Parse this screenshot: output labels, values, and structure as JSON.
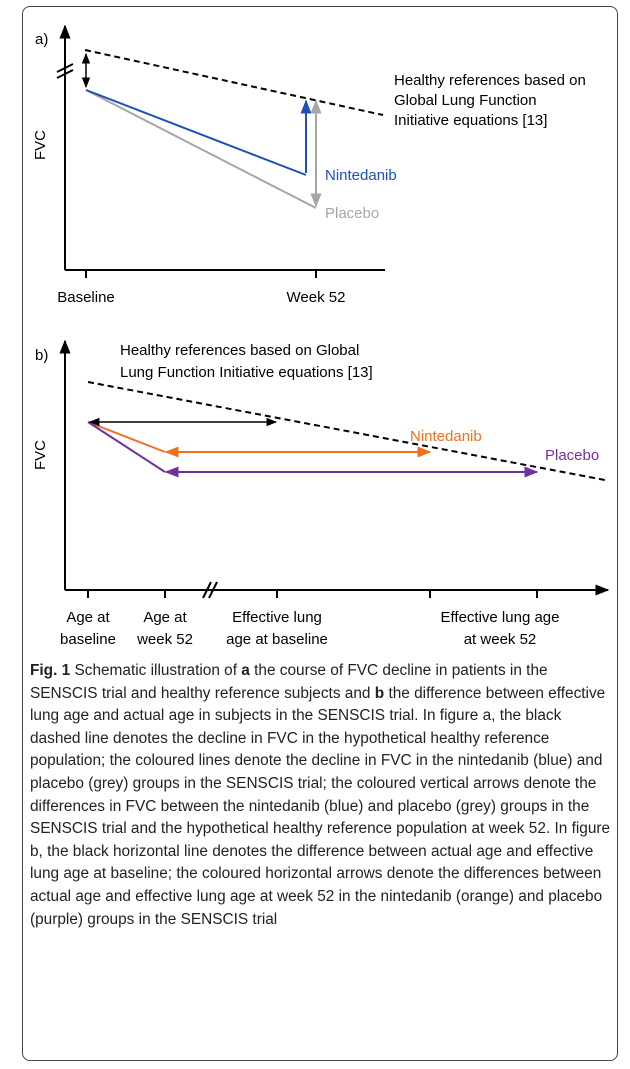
{
  "panel_a": {
    "label": "a)",
    "y_axis": "FVC",
    "x_labels": [
      "Baseline",
      "Week 52"
    ],
    "reference_lines": [
      "Healthy references based on",
      "Global Lung Function",
      "Initiative equations [13]"
    ],
    "series": [
      {
        "name": "Nintedanib",
        "color": "#1f4fbf"
      },
      {
        "name": "Placebo",
        "color": "#a6a6a6"
      }
    ]
  },
  "panel_b": {
    "label": "b)",
    "y_axis": "FVC",
    "x_labels": [
      [
        "Age at",
        "baseline"
      ],
      [
        "Age at",
        "week 52"
      ],
      [
        "Effective lung",
        "age at baseline"
      ],
      [
        "Effective lung age",
        "at week 52"
      ]
    ],
    "reference_lines": [
      "Healthy references based on Global",
      "Lung Function Initiative equations [13]"
    ],
    "series": [
      {
        "name": "Nintedanib",
        "color": "#f07020"
      },
      {
        "name": "Placebo",
        "color": "#7030a0"
      }
    ]
  },
  "caption": {
    "label": "Fig. 1",
    "segments": [
      {
        "text": " Schematic illustration of ",
        "bold": false
      },
      {
        "text": "a",
        "bold": true
      },
      {
        "text": " the course of FVC decline in patients in the SENSCIS trial and healthy reference subjects and ",
        "bold": false
      },
      {
        "text": "b",
        "bold": true
      },
      {
        "text": " the difference between effective lung age and actual age in subjects in the SENSCIS trial. In figure a, the black dashed line denotes the decline in FVC in the hypothetical healthy reference population; the coloured lines denote the decline in FVC in the nintedanib (blue) and placebo (grey) groups in the SENSCIS trial; the coloured vertical arrows denote the differences in FVC between the nintedanib (blue) and placebo (grey) groups in the SENSCIS trial and the hypothetical healthy reference population at week 52. In figure b, the black horizontal line denotes the difference between actual age and effective lung age at baseline; the coloured horizontal arrows denote the differences between actual age and effective lung age at week 52 in the nintedanib (orange) and placebo (purple) groups in the SENSCIS trial",
        "bold": false
      }
    ]
  }
}
